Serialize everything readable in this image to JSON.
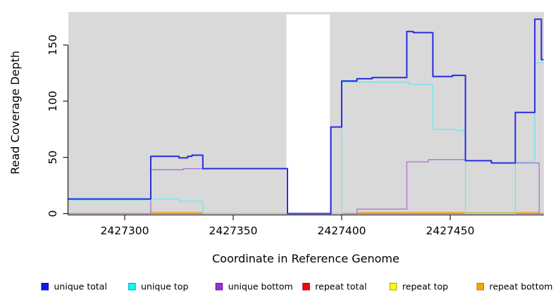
{
  "figure": {
    "xlabel": "Coordinate in Reference Genome",
    "ylabel": "Read Coverage Depth"
  },
  "chart_data": {
    "type": "line",
    "subtype": "step-coverage",
    "title": "",
    "xlabel": "Coordinate in Reference Genome",
    "ylabel": "Read Coverage Depth",
    "x_ticks": [
      2427300,
      2427350,
      2427400,
      2427450
    ],
    "y_ticks": [
      0,
      50,
      100,
      150
    ],
    "x_range": [
      2427274,
      2427493
    ],
    "y_range": [
      0,
      179
    ],
    "grid": false,
    "legend_position": "bottom",
    "panel_bg": "#d9d9d9",
    "uncovered_band": {
      "x_start": 2427374.5,
      "x_end": 2427394.5,
      "color": "#ffffff"
    },
    "series": [
      {
        "name": "repeat_top",
        "label": "repeat top",
        "color": "#f0f060",
        "width": 1.2,
        "points": [
          [
            2427274,
            0
          ],
          [
            2427493,
            0
          ]
        ]
      },
      {
        "name": "repeat_total",
        "label": "repeat total",
        "color": "#dd5f7e",
        "width": 1.2,
        "points": [
          [
            2427274,
            0
          ],
          [
            2427493,
            0
          ]
        ]
      },
      {
        "name": "repeat_bottom",
        "label": "repeat bottom",
        "color": "#ffa21e",
        "width": 1.4,
        "points": [
          [
            2427312,
            0
          ],
          [
            2427312,
            1
          ],
          [
            2427336,
            1
          ],
          [
            2427336,
            0
          ]
        ]
      },
      {
        "name": "repeat_bottom_2",
        "label": "repeat bottom",
        "color": "#ffa21e",
        "width": 1.4,
        "points": [
          [
            2427407,
            0
          ],
          [
            2427407,
            1
          ],
          [
            2427457,
            1
          ],
          [
            2427457,
            0.8
          ],
          [
            2427480,
            0.8
          ],
          [
            2427480,
            1
          ],
          [
            2427491,
            1
          ],
          [
            2427491,
            0
          ]
        ]
      },
      {
        "name": "unique_bottom",
        "label": "unique bottom",
        "color": "#a873d6",
        "width": 1.3,
        "points": [
          [
            2427274,
            0
          ],
          [
            2427312,
            0
          ],
          [
            2427312,
            39
          ],
          [
            2427327,
            39
          ],
          [
            2427327,
            40
          ],
          [
            2427375,
            40
          ],
          [
            2427375,
            0
          ],
          [
            2427407,
            0
          ],
          [
            2427407,
            4
          ],
          [
            2427430,
            4
          ],
          [
            2427430,
            46
          ],
          [
            2427440,
            46
          ],
          [
            2427440,
            48
          ],
          [
            2427457,
            48
          ],
          [
            2427457,
            47
          ],
          [
            2427469,
            47
          ],
          [
            2427469,
            45
          ],
          [
            2427491,
            45
          ],
          [
            2427491,
            0
          ],
          [
            2427493,
            0
          ]
        ]
      },
      {
        "name": "unique_top",
        "label": "unique top",
        "color": "#6fe6ef",
        "width": 1.3,
        "points": [
          [
            2427274,
            12
          ],
          [
            2427312,
            12
          ],
          [
            2427312,
            13
          ],
          [
            2427325,
            13
          ],
          [
            2427325,
            11
          ],
          [
            2427336,
            11
          ],
          [
            2427336,
            0
          ],
          [
            2427400,
            0
          ],
          [
            2427400,
            117
          ],
          [
            2427431,
            117
          ],
          [
            2427431,
            115
          ],
          [
            2427442,
            115
          ],
          [
            2427442,
            75
          ],
          [
            2427452,
            75
          ],
          [
            2427452,
            74
          ],
          [
            2427457,
            74
          ],
          [
            2427457,
            0
          ],
          [
            2427480,
            0
          ],
          [
            2427480,
            46
          ],
          [
            2427489,
            46
          ],
          [
            2427489,
            134
          ],
          [
            2427493,
            134
          ]
        ]
      },
      {
        "name": "blend_green_1",
        "label": "",
        "color": "#8ccf8c",
        "width": 1.3,
        "points": [
          [
            2427336,
            0
          ],
          [
            2427375,
            0
          ]
        ]
      },
      {
        "name": "blend_green_2",
        "label": "",
        "color": "#8ccf8c",
        "width": 1.3,
        "points": [
          [
            2427457,
            0.4
          ],
          [
            2427480,
            0.4
          ]
        ]
      },
      {
        "name": "unique_total",
        "label": "unique total",
        "color": "#2b2be0",
        "width": 2,
        "points": [
          [
            2427274,
            13
          ],
          [
            2427312,
            13
          ],
          [
            2427312,
            51
          ],
          [
            2427325,
            51
          ],
          [
            2427325,
            49.5
          ],
          [
            2427329,
            49.5
          ],
          [
            2427329,
            51
          ],
          [
            2427331,
            51
          ],
          [
            2427331,
            52
          ],
          [
            2427336,
            52
          ],
          [
            2427336,
            40
          ],
          [
            2427375,
            40
          ],
          [
            2427375,
            0
          ],
          [
            2427395,
            0
          ],
          [
            2427395,
            77
          ],
          [
            2427400,
            77
          ],
          [
            2427400,
            118
          ],
          [
            2427407,
            118
          ],
          [
            2427407,
            120
          ],
          [
            2427414,
            120
          ],
          [
            2427414,
            121
          ],
          [
            2427430,
            121
          ],
          [
            2427430,
            162
          ],
          [
            2427433,
            162
          ],
          [
            2427433,
            161
          ],
          [
            2427442,
            161
          ],
          [
            2427442,
            122
          ],
          [
            2427451,
            122
          ],
          [
            2427451,
            123
          ],
          [
            2427457,
            123
          ],
          [
            2427457,
            47
          ],
          [
            2427469,
            47
          ],
          [
            2427469,
            45
          ],
          [
            2427480,
            45
          ],
          [
            2427480,
            90
          ],
          [
            2427489,
            90
          ],
          [
            2427489,
            173
          ],
          [
            2427492,
            173
          ],
          [
            2427492,
            137
          ],
          [
            2427493,
            137
          ]
        ]
      }
    ],
    "legend": [
      {
        "label": "unique total",
        "swatch": "#1414ff",
        "swatch_border": "#0000a0"
      },
      {
        "label": "unique top",
        "swatch": "#00ffff",
        "swatch_border": "#00a0a0"
      },
      {
        "label": "unique bottom",
        "swatch": "#9c2fd0",
        "swatch_border": "#6a0dad"
      },
      {
        "label": "repeat total",
        "swatch": "#ff0000",
        "swatch_border": "#a00000"
      },
      {
        "label": "repeat top",
        "swatch": "#ffff00",
        "swatch_border": "#a0a000"
      },
      {
        "label": "repeat bottom",
        "swatch": "#ffa500",
        "swatch_border": "#b87400"
      }
    ]
  }
}
